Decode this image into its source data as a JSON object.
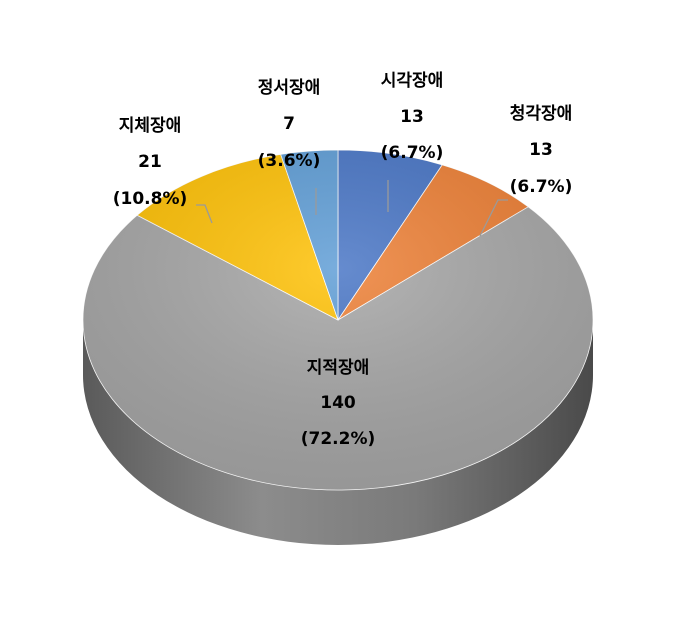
{
  "chart_data": {
    "type": "pie",
    "style": "3d",
    "slices": [
      {
        "category": "시각장애",
        "value": 13,
        "percent_label": "(6.7%)",
        "color": "#4472C4"
      },
      {
        "category": "청각장애",
        "value": 13,
        "percent_label": "(6.7%)",
        "color": "#ED7D31"
      },
      {
        "category": "지적장애",
        "value": 140,
        "percent_label": "(72.2%)",
        "color": "#A5A5A5"
      },
      {
        "category": "지체장애",
        "value": 21,
        "percent_label": "(10.8%)",
        "color": "#FFC000"
      },
      {
        "category": "정서장애",
        "value": 7,
        "percent_label": "(3.6%)",
        "color": "#5B9BD5"
      }
    ],
    "title": "",
    "legend": "none"
  }
}
